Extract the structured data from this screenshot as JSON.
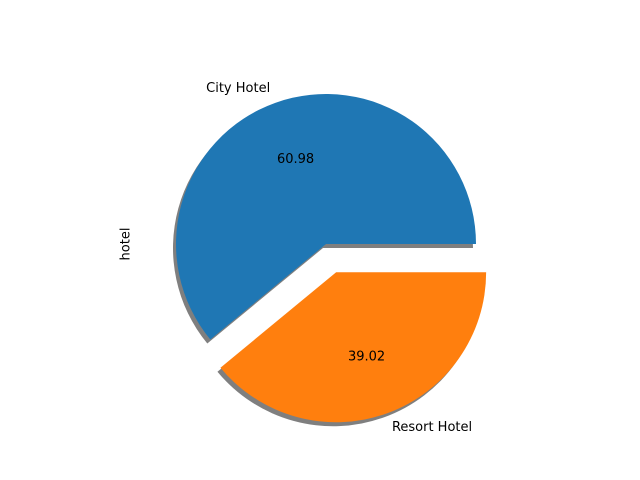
{
  "chart_data": {
    "type": "pie",
    "ylabel": "hotel",
    "shadow": true,
    "start_angle_deg": 0,
    "slices": [
      {
        "label": "City Hotel",
        "value": 60.98,
        "pct_label": "60.98",
        "color": "#1f77b4",
        "explode": 0
      },
      {
        "label": "Resort Hotel",
        "value": 39.02,
        "pct_label": "39.02",
        "color": "#ff7f0e",
        "explode": 0.2
      }
    ]
  }
}
